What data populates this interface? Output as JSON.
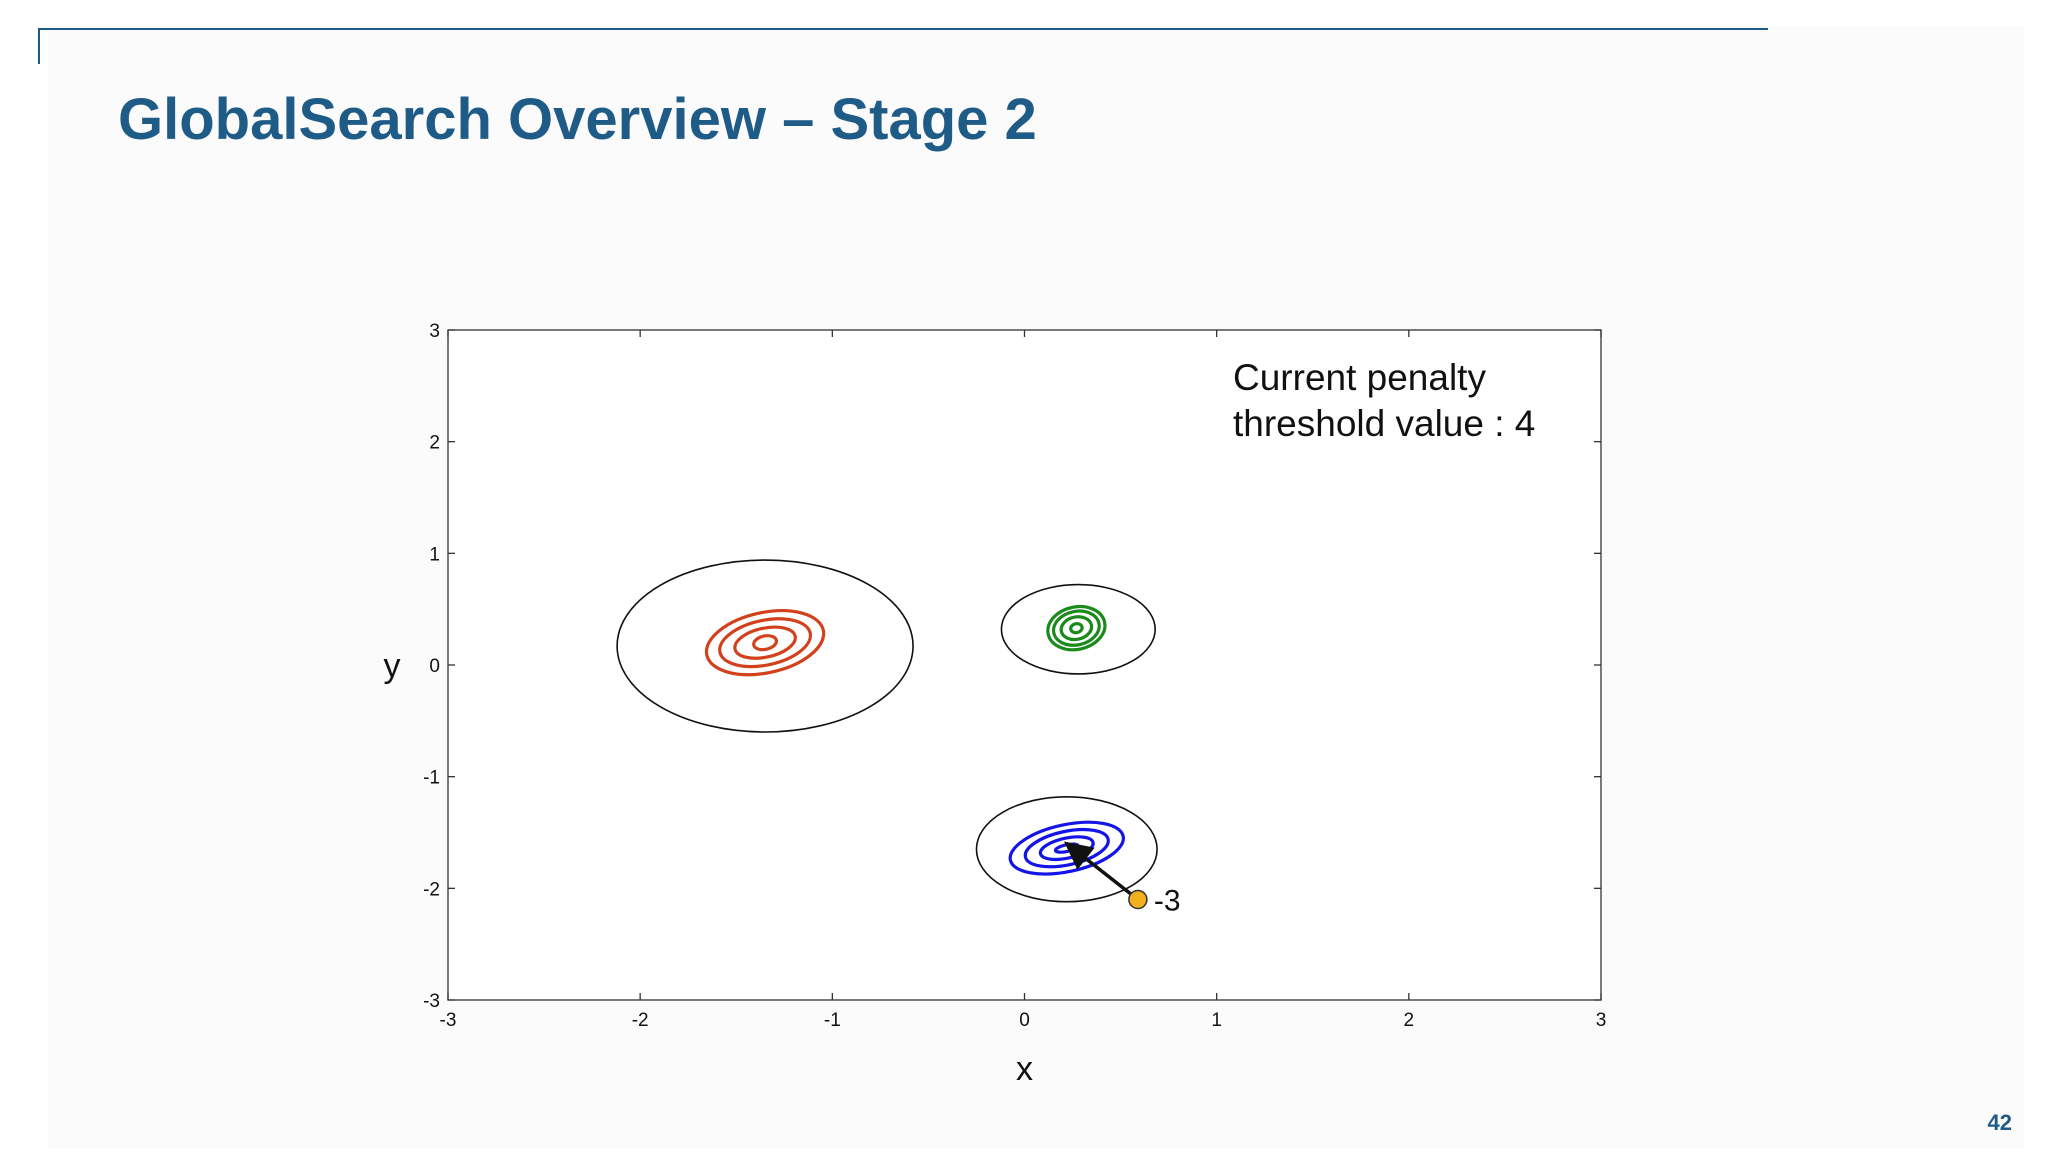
{
  "slide": {
    "title": "GlobalSearch Overview – Stage 2",
    "page_number": "42",
    "accent_color": "#1f5b87"
  },
  "chart_data": {
    "type": "scatter",
    "title": "",
    "xlabel": "x",
    "ylabel": "y",
    "xlim": [
      -3,
      3
    ],
    "ylim": [
      -3,
      3
    ],
    "xticks": [
      -3,
      -2,
      -1,
      0,
      1,
      2,
      3
    ],
    "yticks": [
      -3,
      -2,
      -1,
      0,
      1,
      2,
      3
    ],
    "grid": false,
    "annotation": {
      "line1": "Current penalty",
      "line2": "threshold value : 4"
    },
    "basins": [
      {
        "center": [
          -1.35,
          0.17
        ],
        "radius": 0.77,
        "contour_color": "#d2401c",
        "contour_center": [
          -1.35,
          0.2
        ],
        "contour_radii": [
          [
            0.06,
            0.06
          ],
          [
            0.16,
            0.13
          ],
          [
            0.24,
            0.2
          ],
          [
            0.31,
            0.27
          ]
        ]
      },
      {
        "center": [
          0.28,
          0.32
        ],
        "radius": 0.4,
        "contour_color": "#1a8a1a",
        "contour_center": [
          0.27,
          0.33
        ],
        "contour_radii": [
          [
            0.03,
            0.04
          ],
          [
            0.08,
            0.1
          ],
          [
            0.12,
            0.15
          ],
          [
            0.15,
            0.19
          ]
        ]
      },
      {
        "center": [
          0.22,
          -1.65
        ],
        "radius": 0.47,
        "contour_color": "#1414e6",
        "contour_center": [
          0.22,
          -1.64
        ],
        "contour_radii": [
          [
            0.06,
            0.03
          ],
          [
            0.14,
            0.09
          ],
          [
            0.22,
            0.15
          ],
          [
            0.3,
            0.21
          ]
        ]
      }
    ],
    "trial_point": {
      "x": 0.59,
      "y": -2.1,
      "label": "-3",
      "color": "#f2b01e",
      "arrow_to": [
        0.22,
        -1.6
      ]
    }
  }
}
